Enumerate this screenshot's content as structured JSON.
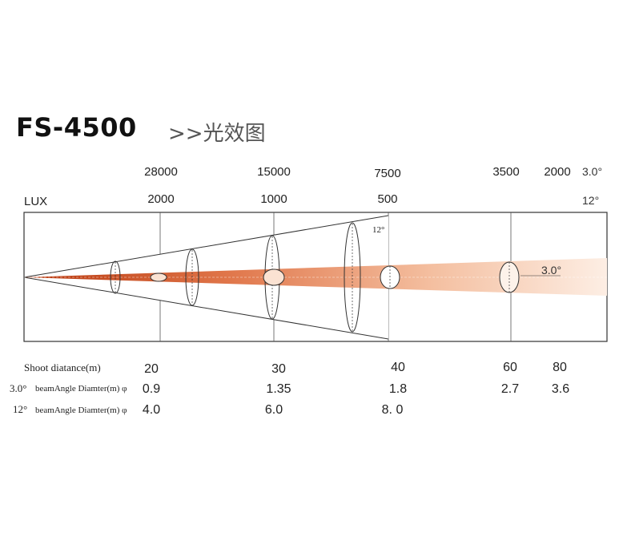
{
  "header": {
    "model": "FS-4500",
    "subtitle": ">>光效图"
  },
  "lux_label": "LUX",
  "beam_3_angle": "3.0°",
  "beam_12_angle": "12°",
  "lux_3": [
    "28000",
    "15000",
    "7500",
    "3500",
    "2000"
  ],
  "lux_12": [
    "2000",
    "1000",
    "500"
  ],
  "rows": {
    "distance_label": "Shoot diatance(m)",
    "beam3_prefix": "3.0°",
    "beam12_prefix": "12°",
    "beam_label": "beamAngle Diamter(m) φ"
  },
  "distances": [
    "20",
    "30",
    "40",
    "60",
    "80"
  ],
  "beam3_diameters": [
    "0.9",
    "1.35",
    "1.8",
    "2.7",
    "3.6"
  ],
  "beam12_diameters": [
    "4.0",
    "6.0",
    "8. 0"
  ],
  "colors": {
    "beam_dark": "#c8471a",
    "beam_light": "#fbe2d2",
    "line": "#333333"
  }
}
